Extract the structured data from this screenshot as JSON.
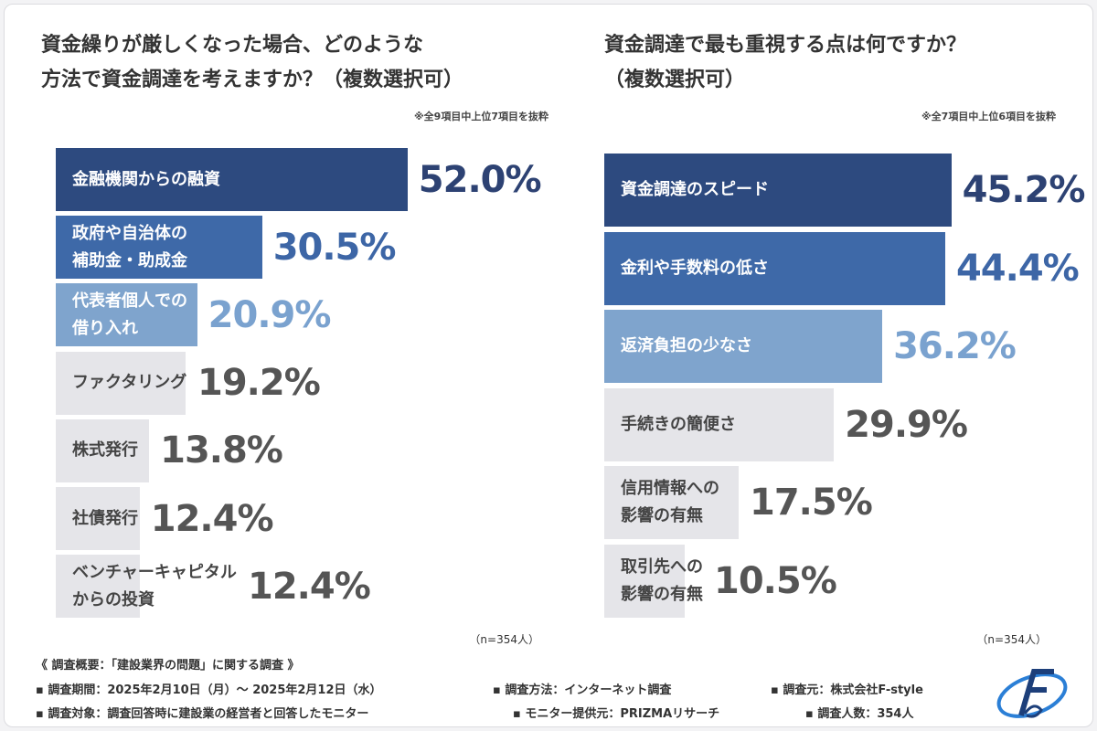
{
  "chart_data": [
    {
      "type": "bar",
      "orientation": "horizontal",
      "title": "資金繰りが厳しくなった場合、どのような\n方法で資金調達を考えますか？（複数選択可）",
      "note": "※全9項目中上位7項目を抜粋",
      "sample": "（n=354人）",
      "categories": [
        "金融機関からの融資",
        "政府や自治体の\n補助金・助成金",
        "代表者個人での\n借り入れ",
        "ファクタリング",
        "株式発行",
        "社債発行",
        "ベンチャーキャピタル\nからの投資"
      ],
      "values": [
        52.0,
        30.5,
        20.9,
        19.2,
        13.8,
        12.4,
        12.4
      ],
      "value_labels": [
        "52.0%",
        "30.5%",
        "20.9%",
        "19.2%",
        "13.8%",
        "12.4%",
        "12.4%"
      ],
      "colors": [
        "#2d4a7f",
        "#3e69a8",
        "#7fa4cd",
        "#e5e5e9",
        "#e5e5e9",
        "#e5e5e9",
        "#e5e5e9"
      ],
      "category_text_colors": [
        "#ffffff",
        "#ffffff",
        "#ffffff",
        "#444444",
        "#444444",
        "#444444",
        "#444444"
      ],
      "label_colors": [
        "#2d4273",
        "#3d66a6",
        "#7aa2cf",
        "#555555",
        "#555555",
        "#555555",
        "#555555"
      ]
    },
    {
      "type": "bar",
      "orientation": "horizontal",
      "title": "資金調達で最も重視する点は何ですか？\n（複数選択可）",
      "note": "※全7項目中上位6項目を抜粋",
      "sample": "（n=354人）",
      "categories": [
        "資金調達のスピード",
        "金利や手数料の低さ",
        "返済負担の少なさ",
        "手続きの簡便さ",
        "信用情報への\n影響の有無",
        "取引先への\n影響の有無"
      ],
      "values": [
        45.2,
        44.4,
        36.2,
        29.9,
        17.5,
        10.5
      ],
      "value_labels": [
        "45.2%",
        "44.4%",
        "36.2%",
        "29.9%",
        "17.5%",
        "10.5%"
      ],
      "colors": [
        "#2d4a7f",
        "#3e69a8",
        "#7fa4cd",
        "#e5e5e9",
        "#e5e5e9",
        "#e5e5e9"
      ],
      "category_text_colors": [
        "#ffffff",
        "#ffffff",
        "#ffffff",
        "#444444",
        "#444444",
        "#444444"
      ],
      "label_colors": [
        "#2d4273",
        "#3d66a6",
        "#7aa2cf",
        "#555555",
        "#555555",
        "#555555"
      ]
    }
  ],
  "footer": {
    "heading": "《 調査概要：「建設業界の問題」に関する調査 》",
    "items": [
      "調査期間：2025年2月10日（月）～ 2025年2月12日（水）",
      "調査方法：インターネット調査",
      "調査元：株式会社F-style",
      "調査対象：調査回答時に建設業の経営者と回答したモニター",
      "モニター提供元：PRIZMAリサーチ",
      "調査人数：354人"
    ]
  }
}
